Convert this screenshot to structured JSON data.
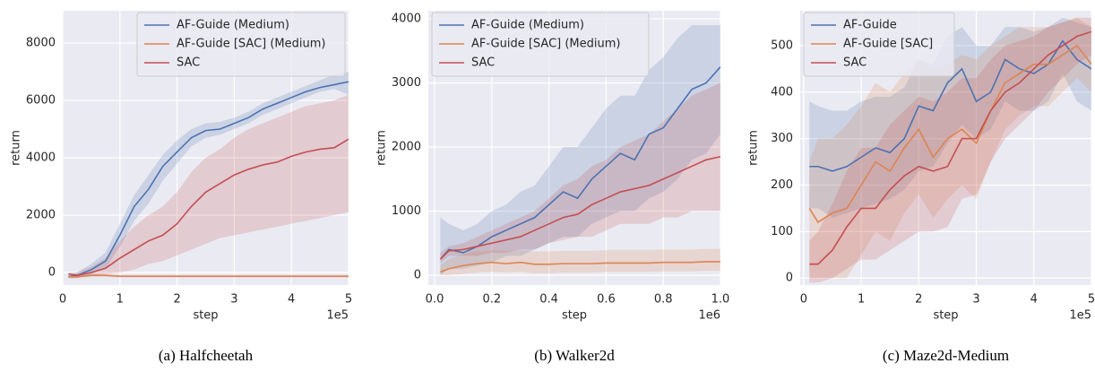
{
  "chart_data": [
    {
      "type": "line",
      "caption": "(a) Halfcheetah",
      "xlabel": "step",
      "ylabel": "return",
      "x_offset_label": "1e5",
      "x": [
        0.1,
        0.25,
        0.5,
        0.75,
        1.0,
        1.25,
        1.5,
        1.75,
        2.0,
        2.25,
        2.5,
        2.75,
        3.0,
        3.25,
        3.5,
        3.75,
        4.0,
        4.25,
        4.5,
        4.75,
        5.0
      ],
      "xlim": [
        0,
        5
      ],
      "xticks": [
        0,
        1,
        2,
        3,
        4,
        5
      ],
      "ylim": [
        -437,
        9125
      ],
      "yticks": [
        0,
        2000,
        4000,
        6000,
        8000
      ],
      "grid": true,
      "legend": "upper right",
      "series": [
        {
          "name": "AF-Guide (Medium)",
          "color": "#4c72b0",
          "values": [
            -150,
            -100,
            100,
            400,
            1300,
            2300,
            2900,
            3700,
            4200,
            4700,
            4950,
            5000,
            5200,
            5400,
            5700,
            5900,
            6100,
            6300,
            6450,
            6550,
            6650
          ],
          "lower": [
            -200,
            -200,
            -50,
            150,
            900,
            1800,
            2400,
            3200,
            3800,
            4400,
            4700,
            4800,
            5000,
            5200,
            5500,
            5700,
            5900,
            6100,
            6300,
            6400,
            6200
          ],
          "upper": [
            -100,
            0,
            300,
            700,
            1700,
            2700,
            3400,
            4100,
            4600,
            5000,
            5200,
            5250,
            5400,
            5600,
            5900,
            6100,
            6300,
            6500,
            6700,
            6900,
            7000
          ]
        },
        {
          "name": "AF-Guide [SAC] (Medium)",
          "color": "#dd8452",
          "values": [
            -150,
            -150,
            -100,
            -100,
            -130,
            -130,
            -130,
            -130,
            -130,
            -130,
            -130,
            -130,
            -130,
            -130,
            -130,
            -130,
            -130,
            -130,
            -130,
            -130,
            -130
          ],
          "lower": [
            -200,
            -200,
            -150,
            -150,
            -170,
            -170,
            -170,
            -170,
            -170,
            -170,
            -170,
            -170,
            -170,
            -170,
            -170,
            -170,
            -170,
            -170,
            -170,
            -170,
            -170
          ],
          "upper": [
            -100,
            -100,
            -50,
            -50,
            -90,
            -90,
            -90,
            -90,
            -90,
            -90,
            -90,
            -90,
            -90,
            -90,
            -90,
            -90,
            -90,
            -90,
            -90,
            -90,
            -90
          ]
        },
        {
          "name": "SAC",
          "color": "#c44e52",
          "values": [
            -50,
            -100,
            0,
            150,
            500,
            800,
            1100,
            1300,
            1700,
            2300,
            2800,
            3100,
            3400,
            3600,
            3750,
            3850,
            4050,
            4200,
            4300,
            4350,
            4650
          ],
          "lower": [
            -150,
            -150,
            -100,
            -50,
            0,
            100,
            300,
            400,
            600,
            800,
            1000,
            1200,
            1300,
            1400,
            1500,
            1600,
            1700,
            1800,
            1900,
            2000,
            2100
          ],
          "upper": [
            0,
            0,
            200,
            500,
            1100,
            1600,
            2000,
            2300,
            2800,
            3500,
            4000,
            4300,
            4700,
            5000,
            5200,
            5400,
            5600,
            5800,
            5900,
            6000,
            6200
          ]
        }
      ]
    },
    {
      "type": "line",
      "caption": "(b) Walker2d",
      "xlabel": "step",
      "ylabel": "return",
      "x_offset_label": "1e6",
      "x": [
        0.02,
        0.05,
        0.1,
        0.15,
        0.2,
        0.25,
        0.3,
        0.35,
        0.4,
        0.45,
        0.5,
        0.55,
        0.6,
        0.65,
        0.7,
        0.75,
        0.8,
        0.85,
        0.9,
        0.95,
        1.0
      ],
      "xlim": [
        -0.022,
        1.0
      ],
      "xticks": [
        {
          "value": 0,
          "label": "0.0"
        },
        0.2,
        0.4,
        0.6,
        0.8,
        {
          "value": 1,
          "label": "1.0"
        }
      ],
      "ylim": [
        -154,
        4126
      ],
      "yticks": [
        0,
        1000,
        2000,
        3000,
        4000
      ],
      "grid": true,
      "legend": "upper left",
      "series": [
        {
          "name": "AF-Guide (Medium)",
          "color": "#4c72b0",
          "values": [
            250,
            400,
            350,
            450,
            600,
            700,
            800,
            900,
            1100,
            1300,
            1200,
            1500,
            1700,
            1900,
            1800,
            2200,
            2300,
            2600,
            2900,
            3000,
            3250
          ],
          "lower": [
            0,
            100,
            100,
            150,
            200,
            300,
            300,
            400,
            500,
            600,
            600,
            800,
            900,
            1000,
            1000,
            1200,
            1300,
            1500,
            1800,
            1900,
            2200
          ],
          "upper": [
            900,
            800,
            700,
            800,
            1000,
            1100,
            1300,
            1400,
            1700,
            2000,
            2000,
            2300,
            2600,
            2800,
            2800,
            3200,
            3400,
            3700,
            3900,
            3900,
            3900
          ]
        },
        {
          "name": "AF-Guide [SAC] (Medium)",
          "color": "#dd8452",
          "values": [
            50,
            100,
            150,
            180,
            200,
            180,
            200,
            170,
            170,
            180,
            180,
            180,
            190,
            190,
            190,
            190,
            200,
            200,
            200,
            210,
            210
          ],
          "lower": [
            0,
            0,
            20,
            40,
            50,
            40,
            50,
            30,
            30,
            40,
            40,
            40,
            50,
            50,
            50,
            50,
            60,
            60,
            60,
            70,
            70
          ],
          "upper": [
            150,
            250,
            330,
            370,
            390,
            380,
            390,
            370,
            370,
            380,
            380,
            380,
            390,
            390,
            390,
            390,
            400,
            400,
            400,
            410,
            410
          ]
        },
        {
          "name": "SAC",
          "color": "#c44e52",
          "values": [
            250,
            380,
            400,
            450,
            500,
            550,
            600,
            700,
            800,
            900,
            950,
            1100,
            1200,
            1300,
            1350,
            1400,
            1500,
            1600,
            1700,
            1800,
            1850
          ],
          "lower": [
            200,
            300,
            300,
            300,
            350,
            350,
            400,
            400,
            500,
            550,
            600,
            600,
            700,
            800,
            800,
            800,
            900,
            900,
            1000,
            1000,
            1000
          ],
          "upper": [
            350,
            450,
            500,
            600,
            700,
            800,
            900,
            1000,
            1200,
            1400,
            1500,
            1700,
            1800,
            2000,
            2100,
            2200,
            2400,
            2600,
            2800,
            2900,
            3000
          ]
        }
      ]
    },
    {
      "type": "line",
      "caption": "(c) Maze2d-Medium",
      "xlabel": "step",
      "ylabel": "return",
      "x_offset_label": "1e5",
      "x": [
        0.1,
        0.25,
        0.5,
        0.75,
        1.0,
        1.25,
        1.5,
        1.75,
        2.0,
        2.25,
        2.5,
        2.75,
        3.0,
        3.25,
        3.5,
        3.75,
        4.0,
        4.25,
        4.5,
        4.75,
        5.0
      ],
      "xlim": [
        -0.06,
        5
      ],
      "xticks": [
        0,
        1,
        2,
        3,
        4,
        5
      ],
      "ylim": [
        -15,
        575
      ],
      "yticks": [
        0,
        100,
        200,
        300,
        400,
        500
      ],
      "grid": true,
      "legend": "upper left",
      "series": [
        {
          "name": "AF-Guide",
          "color": "#4c72b0",
          "values": [
            240,
            240,
            230,
            240,
            260,
            280,
            270,
            300,
            370,
            360,
            420,
            450,
            380,
            400,
            470,
            450,
            440,
            460,
            510,
            470,
            450
          ],
          "lower": [
            150,
            150,
            130,
            140,
            150,
            160,
            170,
            190,
            230,
            240,
            290,
            330,
            300,
            320,
            380,
            360,
            360,
            380,
            440,
            380,
            360
          ],
          "upper": [
            380,
            370,
            360,
            360,
            380,
            390,
            390,
            410,
            470,
            460,
            520,
            540,
            500,
            500,
            540,
            540,
            530,
            540,
            560,
            550,
            540
          ]
        },
        {
          "name": "AF-Guide [SAC]",
          "color": "#dd8452",
          "values": [
            150,
            120,
            140,
            150,
            200,
            250,
            230,
            280,
            320,
            260,
            300,
            320,
            290,
            360,
            420,
            440,
            460,
            460,
            480,
            500,
            460
          ],
          "lower": [
            0,
            0,
            0,
            0,
            50,
            100,
            80,
            140,
            180,
            130,
            170,
            200,
            170,
            250,
            320,
            350,
            370,
            370,
            400,
            430,
            400
          ],
          "upper": [
            250,
            300,
            300,
            330,
            370,
            420,
            400,
            440,
            470,
            450,
            460,
            480,
            470,
            500,
            520,
            540,
            540,
            540,
            550,
            560,
            540
          ]
        },
        {
          "name": "SAC",
          "color": "#c44e52",
          "values": [
            30,
            30,
            60,
            110,
            150,
            150,
            190,
            220,
            240,
            230,
            240,
            300,
            300,
            360,
            400,
            420,
            450,
            480,
            500,
            520,
            530
          ],
          "lower": [
            -10,
            -10,
            0,
            20,
            40,
            40,
            60,
            80,
            100,
            100,
            110,
            170,
            180,
            250,
            300,
            330,
            360,
            400,
            430,
            460,
            480
          ],
          "upper": [
            80,
            100,
            160,
            230,
            280,
            280,
            330,
            360,
            390,
            380,
            400,
            430,
            430,
            470,
            500,
            510,
            520,
            540,
            550,
            560,
            560
          ]
        }
      ]
    }
  ]
}
